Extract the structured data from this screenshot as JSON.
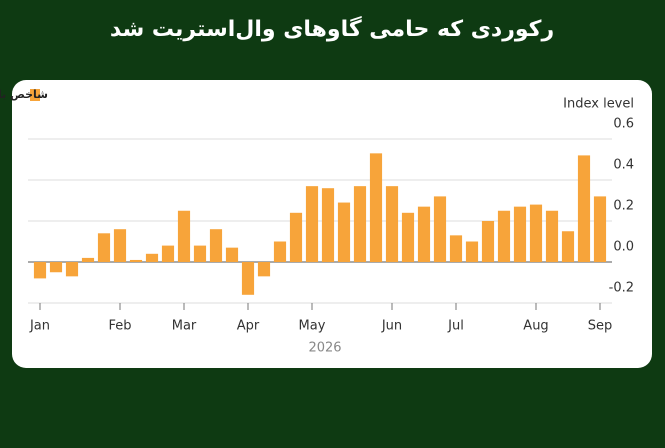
{
  "chart_data": {
    "type": "bar",
    "title": "رکوردی که حامی گاوهای وال‌استریت شد",
    "legend_label": "شاخص بازنگری بر آورد سود شرکت‌های آمریکایی سیتی‌گروپ",
    "y_axis_label": "Index level",
    "x_axis_label": "2026",
    "color": "#f7a43a",
    "categories": [
      "Jan",
      null,
      null,
      null,
      null,
      "Feb",
      null,
      null,
      null,
      "Mar",
      null,
      null,
      null,
      "Apr",
      null,
      null,
      null,
      "May",
      null,
      null,
      null,
      null,
      "Jun",
      null,
      null,
      null,
      "Jul",
      null,
      null,
      null,
      null,
      "Aug",
      null,
      null,
      null,
      "Sep"
    ],
    "values": [
      -0.08,
      -0.05,
      -0.07,
      0.02,
      0.14,
      0.16,
      0.01,
      0.04,
      0.08,
      0.25,
      0.08,
      0.16,
      0.07,
      -0.16,
      -0.07,
      0.1,
      0.24,
      0.37,
      0.36,
      0.29,
      0.37,
      0.53,
      0.37,
      0.24,
      0.27,
      0.32,
      0.13,
      0.1,
      0.2,
      0.25,
      0.27,
      0.28,
      0.25,
      0.15,
      0.52,
      0.32
    ],
    "ylim": [
      -0.2,
      0.6
    ],
    "yticks": [
      {
        "value": -0.2,
        "label": "-0.2"
      },
      {
        "value": 0,
        "label": "0.0"
      },
      0.2,
      0.4,
      0.6
    ],
    "grid": true
  }
}
